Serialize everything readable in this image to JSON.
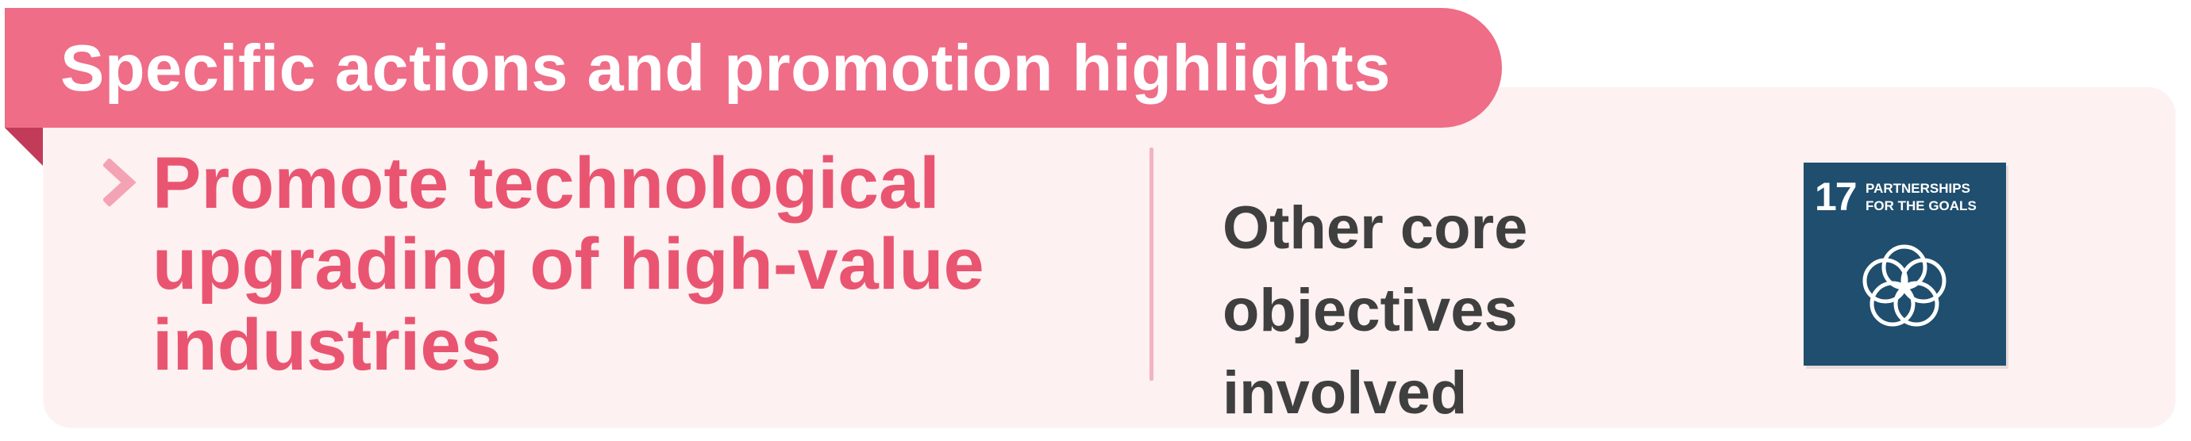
{
  "banner": {
    "title": "Specific actions and promotion highlights"
  },
  "main": {
    "headline": "Promote technological upgrading of high-value industries"
  },
  "side": {
    "label": "Other core objectives involved"
  },
  "sdg_tile": {
    "number": "17",
    "text": "PARTNERSHIPS\nFOR THE GOALS",
    "icon": "partnership-rings-icon",
    "color": "#1f4e6e"
  },
  "colors": {
    "banner": "#ef6d87",
    "headline": "#e95571",
    "card": "#fdf1f1",
    "divider": "#f4b3c0",
    "label": "#3f3f3f"
  }
}
